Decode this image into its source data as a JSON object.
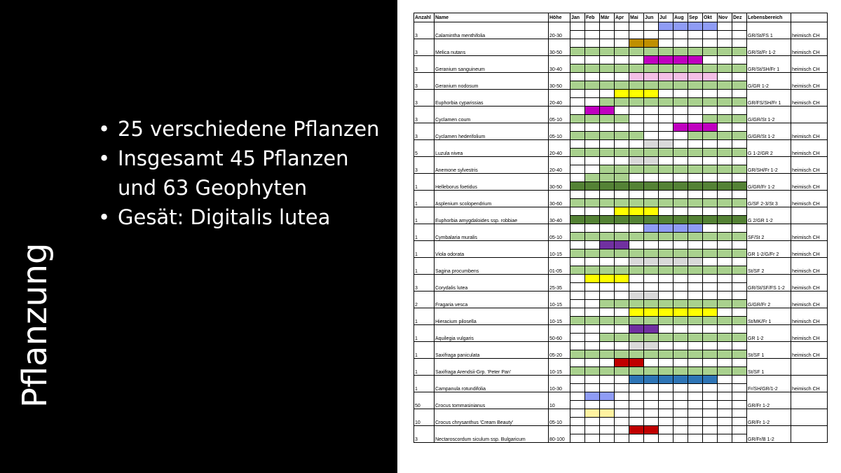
{
  "slide": {
    "title": "Pflanzung",
    "bullets": [
      "25 verschiedene Pflanzen",
      "Insgesamt 45 Pflanzen und 63 Geophyten",
      "Gesät: Digitalis lutea"
    ]
  },
  "colors": {
    "foliage": "#a9d18e",
    "darkgreen": "#548235",
    "blue": "#8f9cf5",
    "ochre": "#bf8f00",
    "magenta": "#c000c0",
    "pink": "#f4bfe6",
    "yellow": "#ffff00",
    "lightgray": "#d9d9d9",
    "purple": "#7030a0",
    "red": "#c00000",
    "steelblue": "#2e75b6",
    "lightyellow": "#fff2a0"
  },
  "table": {
    "headers": {
      "count": "Anzahl",
      "name": "Name",
      "height": "Höhe",
      "months": [
        "Jan",
        "Feb",
        "Mär",
        "Apr",
        "Mai",
        "Jun",
        "Jul",
        "Aug",
        "Sep",
        "Okt",
        "Nov",
        "Dez"
      ],
      "habitat": "Lebensbereich",
      "origin": ""
    },
    "rows": [
      {
        "count": "3",
        "name": "Calamintha menthifolia",
        "height": "20-30",
        "habitat": "GR/St/FS 1",
        "origin": "heimisch CH",
        "bloom": {
          "color": "blue",
          "months": [
            7,
            8,
            9,
            10
          ]
        },
        "foliage": null
      },
      {
        "count": "3",
        "name": "Melica nutans",
        "height": "30-50",
        "habitat": "GR/St/Fr 1-2",
        "origin": "heimisch CH",
        "bloom": {
          "color": "ochre",
          "months": [
            5,
            6
          ]
        },
        "foliage": {
          "color": "foliage",
          "months": [
            1,
            2,
            3,
            4,
            5,
            6,
            7,
            8,
            9,
            10,
            11,
            12
          ]
        }
      },
      {
        "count": "3",
        "name": "Geranium sanguineum",
        "height": "30-40",
        "habitat": "GR/St/SH/Fr 1",
        "origin": "heimisch CH",
        "bloom": {
          "color": "magenta",
          "months": [
            6,
            7,
            8,
            9
          ]
        },
        "foliage": {
          "color": "foliage",
          "months": [
            1,
            2,
            3,
            4,
            5,
            6,
            7,
            8,
            9,
            10,
            11,
            12
          ]
        }
      },
      {
        "count": "3",
        "name": "Geranium nodosum",
        "height": "30-50",
        "habitat": "G/GR 1-2",
        "origin": "heimisch CH",
        "bloom": {
          "color": "pink",
          "months": [
            5,
            6,
            7,
            8,
            9,
            10
          ]
        },
        "foliage": {
          "color": "foliage",
          "months": [
            1,
            2,
            3,
            4,
            5,
            6,
            7,
            8,
            9,
            10,
            11,
            12
          ]
        }
      },
      {
        "count": "3",
        "name": "Euphorbia cyparissias",
        "height": "20-40",
        "habitat": "GR/FS/SH/Fr 1",
        "origin": "heimisch CH",
        "bloom": {
          "color": "yellow",
          "months": [
            4,
            5,
            6
          ]
        },
        "foliage": {
          "color": "foliage",
          "months": [
            3,
            4,
            5,
            6,
            7,
            8,
            9,
            10,
            11,
            12
          ]
        }
      },
      {
        "count": "3",
        "name": "Cyclamen coum",
        "height": "05-10",
        "habitat": "G/GR/St 1-2",
        "origin": "",
        "bloom": {
          "color": "magenta",
          "months": [
            2,
            3
          ]
        },
        "foliage": {
          "color": "foliage",
          "months": [
            1,
            2,
            3,
            4,
            10,
            11,
            12
          ]
        }
      },
      {
        "count": "3",
        "name": "Cyclamen hederifolium",
        "height": "05-10",
        "habitat": "G/GR/St 1-2",
        "origin": "heimisch CH",
        "bloom": {
          "color": "magenta",
          "months": [
            8,
            9,
            10
          ]
        },
        "foliage": {
          "color": "foliage",
          "months": [
            1,
            2,
            3,
            4,
            5,
            9,
            10,
            11,
            12
          ]
        }
      },
      {
        "count": "5",
        "name": "Luzula nivea",
        "height": "20-40",
        "habitat": "G 1-2/GR 2",
        "origin": "heimisch CH",
        "bloom": {
          "color": "lightgray",
          "months": [
            6,
            7
          ]
        },
        "foliage": {
          "color": "foliage",
          "months": [
            1,
            2,
            3,
            4,
            5,
            6,
            7,
            8,
            9,
            10,
            11,
            12
          ]
        }
      },
      {
        "count": "3",
        "name": "Anemone sylvestris",
        "height": "20-40",
        "habitat": "GR/SH/Fr 1-2",
        "origin": "heimisch CH",
        "bloom": {
          "color": "lightgray",
          "months": [
            5,
            6
          ]
        },
        "foliage": {
          "color": "foliage",
          "months": [
            3,
            4,
            5,
            6,
            7,
            8,
            9,
            10,
            11,
            12
          ]
        }
      },
      {
        "count": "1",
        "name": "Helleborus foetidus",
        "height": "30-50",
        "habitat": "G/GR/Fr 1-2",
        "origin": "heimisch CH",
        "bloom": {
          "color": "foliage",
          "months": [
            2,
            3,
            4
          ]
        },
        "foliage": {
          "color": "darkgreen",
          "months": [
            1,
            2,
            3,
            4,
            5,
            6,
            7,
            8,
            9,
            10,
            11,
            12
          ]
        }
      },
      {
        "count": "1",
        "name": "Asplenium scolopendrium",
        "height": "30-60",
        "habitat": "G/SF 2-3/St 3",
        "origin": "heimisch CH",
        "bloom": null,
        "foliage": {
          "color": "foliage",
          "months": [
            1,
            2,
            3,
            4,
            5,
            6,
            7,
            8,
            9,
            10,
            11,
            12
          ]
        }
      },
      {
        "count": "1",
        "name": "Euphorbia amygdaloides ssp. robbiae",
        "height": "30-40",
        "habitat": "G 2/GR 1-2",
        "origin": "",
        "bloom": {
          "color": "yellow",
          "months": [
            4,
            5,
            6
          ]
        },
        "foliage": {
          "color": "darkgreen",
          "months": [
            1,
            2,
            3,
            4,
            5,
            6,
            7,
            8,
            9,
            10,
            11,
            12
          ]
        }
      },
      {
        "count": "1",
        "name": "Cymbalaria muralis",
        "height": "05-10",
        "habitat": "SF/St 2",
        "origin": "heimisch CH",
        "bloom": {
          "color": "blue",
          "months": [
            6,
            7,
            8,
            9
          ]
        },
        "foliage": {
          "color": "foliage",
          "months": [
            1,
            2,
            3,
            4,
            5,
            6,
            7,
            8,
            9,
            10,
            11,
            12
          ]
        }
      },
      {
        "count": "1",
        "name": "Viola odorata",
        "height": "10-15",
        "habitat": "GR 1-2/G/Fr 2",
        "origin": "heimisch CH",
        "bloom": {
          "color": "purple",
          "months": [
            3,
            4
          ]
        },
        "foliage": {
          "color": "foliage",
          "months": [
            1,
            2,
            3,
            4,
            5,
            6,
            7,
            8,
            9,
            10,
            11,
            12
          ]
        }
      },
      {
        "count": "1",
        "name": "Sagina procumbens",
        "height": "01-05",
        "habitat": "St/SF 2",
        "origin": "heimisch CH",
        "bloom": {
          "color": "lightgray",
          "months": [
            5,
            6,
            7,
            8,
            9
          ]
        },
        "foliage": {
          "color": "foliage",
          "months": [
            1,
            2,
            3,
            4,
            5,
            6,
            7,
            8,
            9,
            10,
            11,
            12
          ]
        }
      },
      {
        "count": "3",
        "name": "Corydalis lutea",
        "height": "25-35",
        "habitat": "GR/St/SF/FS 1-2",
        "origin": "heimisch CH",
        "bloom": {
          "color": "yellow",
          "months": [
            2,
            3,
            4
          ]
        },
        "foliage": null
      },
      {
        "count": "2",
        "name": "Fragaria vesca",
        "height": "10-15",
        "habitat": "G/GR/Fr 2",
        "origin": "heimisch CH",
        "bloom": {
          "color": "lightgray",
          "months": [
            5,
            6
          ]
        },
        "foliage": {
          "color": "foliage",
          "months": [
            3,
            4,
            5,
            6,
            7,
            8,
            9,
            10,
            11,
            12
          ]
        }
      },
      {
        "count": "1",
        "name": "Hieracium pilosella",
        "height": "10-15",
        "habitat": "St/MK/Fr 1",
        "origin": "heimisch CH",
        "bloom": {
          "color": "yellow",
          "months": [
            5,
            6,
            7,
            8,
            9,
            10
          ]
        },
        "foliage": {
          "color": "foliage",
          "months": [
            1,
            2,
            3,
            4,
            5,
            6,
            7,
            8,
            9,
            10,
            11,
            12
          ]
        }
      },
      {
        "count": "1",
        "name": "Aquilegia vulgaris",
        "height": "50-60",
        "habitat": "GR 1-2",
        "origin": "heimisch CH",
        "bloom": {
          "color": "purple",
          "months": [
            5,
            6
          ]
        },
        "foliage": {
          "color": "foliage",
          "months": [
            3,
            4,
            5,
            6,
            7,
            8,
            9,
            10,
            11,
            12
          ]
        }
      },
      {
        "count": "1",
        "name": "Saxifraga paniculata",
        "height": "05-20",
        "habitat": "St/SF 1",
        "origin": "heimisch CH",
        "bloom": {
          "color": "lightgray",
          "months": [
            5,
            6
          ]
        },
        "foliage": {
          "color": "foliage",
          "months": [
            1,
            2,
            3,
            4,
            5,
            6,
            7,
            8,
            9,
            10,
            11,
            12
          ]
        }
      },
      {
        "count": "1",
        "name": "Saxifraga Arendsii-Grp. 'Peter Pan'",
        "height": "10-15",
        "habitat": "St/SF 1",
        "origin": "",
        "bloom": {
          "color": "red",
          "months": [
            4,
            5
          ]
        },
        "foliage": {
          "color": "foliage",
          "months": [
            1,
            2,
            3,
            4,
            5,
            6,
            7,
            8,
            9,
            10,
            11,
            12
          ]
        }
      },
      {
        "count": "1",
        "name": "Campanula rotundifolia",
        "height": "10-30",
        "habitat": "Fr/SH/GR/1-2",
        "origin": "heimisch CH",
        "bloom": {
          "color": "steelblue",
          "months": [
            5,
            6,
            7,
            8,
            9,
            10
          ]
        },
        "foliage": null
      },
      {
        "count": "50",
        "name": "Crocus tommasinianus",
        "height": "10",
        "habitat": "GR/Fr 1-2",
        "origin": "",
        "bloom": {
          "color": "blue",
          "months": [
            2,
            3
          ]
        },
        "foliage": null
      },
      {
        "count": "10",
        "name": "Crocus chrysanthus 'Cream Beauty'",
        "height": "05-10",
        "habitat": "GR/Fr 1-2",
        "origin": "",
        "bloom": {
          "color": "lightyellow",
          "months": [
            2,
            3
          ]
        },
        "foliage": null
      },
      {
        "count": "3",
        "name": "Nectaroscordum siculum ssp. Bulgaricum",
        "height": "80-100",
        "habitat": "GR/Fr/B 1-2",
        "origin": "",
        "bloom": {
          "color": "red",
          "months": [
            5,
            6
          ]
        },
        "foliage": null
      }
    ]
  }
}
